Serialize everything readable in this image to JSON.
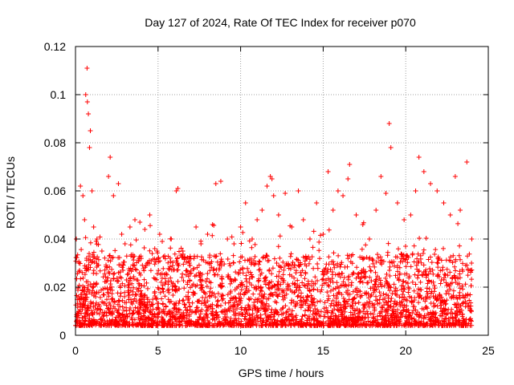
{
  "chart_data": {
    "type": "scatter",
    "title": "Day 127 of 2024, Rate Of TEC Index for receiver p070",
    "xlabel": "GPS time / hours",
    "ylabel": "ROTI / TECUs",
    "xlim": [
      0,
      25
    ],
    "ylim": [
      0,
      0.12
    ],
    "xticks": [
      0,
      5,
      10,
      15,
      20,
      25
    ],
    "xtick_labels": [
      "0",
      "5",
      "10",
      "15",
      "20",
      "25"
    ],
    "yticks": [
      0,
      0.02,
      0.04,
      0.06,
      0.08,
      0.1,
      0.12
    ],
    "ytick_labels": [
      "0",
      "0.02",
      "0.04",
      "0.06",
      "0.08",
      "0.1",
      "0.12"
    ],
    "grid": true,
    "marker": "+",
    "color": "#ff0000",
    "series": [
      {
        "name": "ROTI",
        "x": [
          0.05,
          0.3,
          0.45,
          0.55,
          0.62,
          0.7,
          0.72,
          0.78,
          0.85,
          0.9,
          1.0,
          1.1,
          1.3,
          1.6,
          2.0,
          2.1,
          2.3,
          2.6,
          2.8,
          3.0,
          3.3,
          3.6,
          3.9,
          4.2,
          4.5,
          4.8,
          5.1,
          5.4,
          5.8,
          6.1,
          6.2,
          6.5,
          6.9,
          7.3,
          7.6,
          8.0,
          8.3,
          8.5,
          8.8,
          9.2,
          9.6,
          10.0,
          10.3,
          10.7,
          11.0,
          11.3,
          11.6,
          11.8,
          11.9,
          12.0,
          12.3,
          12.7,
          13.1,
          13.5,
          13.8,
          14.2,
          14.6,
          15.0,
          15.3,
          15.6,
          15.9,
          16.2,
          16.5,
          16.6,
          17.0,
          17.4,
          17.8,
          18.2,
          18.5,
          18.8,
          19.0,
          19.1,
          19.5,
          19.9,
          20.3,
          20.6,
          20.8,
          21.1,
          21.5,
          21.9,
          22.3,
          22.7,
          23.0,
          23.3,
          23.7,
          24.0
        ],
        "y": [
          0.04,
          0.062,
          0.058,
          0.048,
          0.1,
          0.111,
          0.097,
          0.092,
          0.078,
          0.085,
          0.06,
          0.045,
          0.04,
          0.035,
          0.066,
          0.074,
          0.058,
          0.063,
          0.042,
          0.038,
          0.045,
          0.048,
          0.047,
          0.044,
          0.05,
          0.036,
          0.042,
          0.033,
          0.04,
          0.06,
          0.061,
          0.035,
          0.03,
          0.045,
          0.038,
          0.042,
          0.046,
          0.063,
          0.064,
          0.04,
          0.038,
          0.045,
          0.055,
          0.04,
          0.048,
          0.052,
          0.062,
          0.066,
          0.065,
          0.058,
          0.05,
          0.059,
          0.045,
          0.06,
          0.048,
          0.04,
          0.055,
          0.042,
          0.068,
          0.052,
          0.06,
          0.058,
          0.065,
          0.071,
          0.05,
          0.046,
          0.04,
          0.052,
          0.066,
          0.059,
          0.088,
          0.078,
          0.055,
          0.048,
          0.05,
          0.06,
          0.074,
          0.068,
          0.063,
          0.06,
          0.055,
          0.05,
          0.066,
          0.052,
          0.072,
          0.04
        ]
      }
    ]
  }
}
